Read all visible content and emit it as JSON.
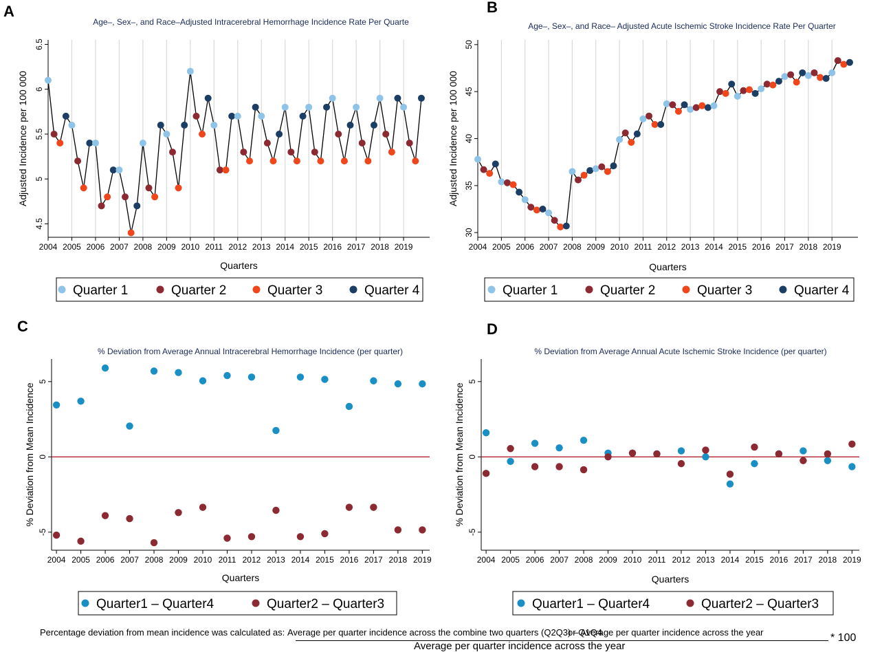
{
  "colors": {
    "q1": "#8fc4e8",
    "q2": "#8b2a32",
    "q3": "#f0461c",
    "q4": "#1c3e64",
    "q14": "#1a8fc4",
    "q23": "#8b2a32",
    "zero": "#b3222d",
    "grid": "#d9d9d9"
  },
  "footnote": {
    "prefix": "Percentage deviation from mean incidence was calculated as:",
    "numerator": "Average per quarter incidence across the combine two quarters (Q2Q3) – Average per quarter incidence across the year",
    "overlay_fragment": "or Q1Q4",
    "denominator": "Average per quarter incidence across the year",
    "multiplier": "* 100"
  },
  "chart_data": [
    {
      "id": "A",
      "letter": "A",
      "type": "line",
      "title": "Age–, Sex–, and Race–Adjusted Intracerebral Hemorrhage Incidence Rate Per Quarte",
      "xlabel": "Quarters",
      "ylabel": "Adjusted Incidence per 100 000",
      "xlim": [
        2004,
        2020.1
      ],
      "ylim": [
        4.35,
        6.55
      ],
      "yticks": [
        4.5,
        5,
        5.5,
        6,
        6.5
      ],
      "ytick_labels": [
        "4.5",
        "5",
        "5.5",
        "6",
        "6.5"
      ],
      "xticks": [
        2004,
        2005,
        2006,
        2007,
        2008,
        2009,
        2010,
        2011,
        2012,
        2013,
        2014,
        2015,
        2016,
        2017,
        2018,
        2019
      ],
      "xtick_labels": [
        "2004",
        "2005",
        "2006",
        "2007",
        "2008",
        "2009",
        "2010",
        "2011",
        "2012",
        "2013",
        "2014",
        "2015",
        "2016",
        "2017",
        "2018",
        "2019"
      ],
      "legend": [
        "Quarter 1",
        "Quarter 2",
        "Quarter 3",
        "Quarter 4"
      ],
      "values": [
        6.1,
        5.5,
        5.4,
        5.7,
        5.6,
        5.2,
        4.9,
        5.4,
        5.4,
        4.7,
        4.8,
        5.1,
        5.1,
        4.8,
        4.4,
        4.7,
        5.4,
        4.9,
        4.8,
        5.6,
        5.5,
        5.3,
        4.9,
        5.6,
        6.2,
        5.7,
        5.5,
        5.9,
        5.6,
        5.1,
        5.1,
        5.7,
        5.7,
        5.3,
        5.2,
        5.8,
        5.7,
        5.4,
        5.2,
        5.5,
        5.8,
        5.3,
        5.2,
        5.7,
        5.8,
        5.3,
        5.2,
        5.8,
        5.9,
        5.5,
        5.2,
        5.6,
        5.8,
        5.4,
        5.2,
        5.6,
        5.9,
        5.5,
        5.3,
        5.9,
        5.8,
        5.4,
        5.2,
        5.9
      ]
    },
    {
      "id": "B",
      "letter": "B",
      "type": "line",
      "title": "Age–, Sex–, and Race– Adjusted Acute Ischemic Stroke Incidence Rate Per Quarter",
      "xlabel": "Quarters",
      "ylabel": "Adjusted Incidence per 100 000",
      "xlim": [
        2004,
        2020.1
      ],
      "ylim": [
        29.5,
        50.5
      ],
      "yticks": [
        30,
        35,
        40,
        45,
        50
      ],
      "ytick_labels": [
        "30",
        "35",
        "40",
        "45",
        "50"
      ],
      "xticks": [
        2004,
        2005,
        2006,
        2007,
        2008,
        2009,
        2010,
        2011,
        2012,
        2013,
        2014,
        2015,
        2016,
        2017,
        2018,
        2019
      ],
      "xtick_labels": [
        "2004",
        "2005",
        "2006",
        "2007",
        "2008",
        "2009",
        "2010",
        "2011",
        "2012",
        "2013",
        "2014",
        "2015",
        "2016",
        "2017",
        "2018",
        "2019"
      ],
      "legend": [
        "Quarter 1",
        "Quarter 2",
        "Quarter 3",
        "Quarter 4"
      ],
      "values": [
        37.8,
        36.7,
        36.3,
        37.3,
        35.4,
        35.3,
        35.1,
        34.3,
        33.5,
        32.7,
        32.4,
        32.5,
        32.1,
        31.3,
        30.6,
        30.7,
        36.5,
        35.6,
        36.1,
        36.6,
        36.8,
        37.0,
        36.5,
        37.1,
        39.9,
        40.6,
        39.6,
        40.5,
        42.1,
        42.4,
        41.5,
        41.5,
        43.7,
        43.6,
        42.9,
        43.6,
        43.1,
        43.3,
        43.5,
        43.3,
        43.5,
        45.0,
        44.8,
        45.8,
        44.5,
        45.1,
        45.2,
        44.8,
        45.3,
        45.8,
        45.7,
        46.1,
        46.6,
        46.8,
        46.0,
        47.0,
        46.7,
        47.0,
        46.5,
        46.4,
        47.0,
        48.3,
        47.9,
        48.1
      ]
    },
    {
      "id": "C",
      "letter": "C",
      "type": "scatter",
      "title": "% Deviation from Average Annual Intracerebral Hemorrhage Incidence (per quarter)",
      "xlabel": "Quarters",
      "ylabel": "% Deviation from Mean Incidence",
      "xlim": [
        2003.8,
        2019.3
      ],
      "ylim": [
        -6.2,
        6.5
      ],
      "yticks": [
        -5,
        0,
        5
      ],
      "ytick_labels": [
        "-5",
        "0",
        "5"
      ],
      "xticks": [
        2004,
        2005,
        2006,
        2007,
        2008,
        2009,
        2010,
        2011,
        2012,
        2013,
        2014,
        2015,
        2016,
        2017,
        2018,
        2019
      ],
      "xtick_labels": [
        "2004",
        "2005",
        "2006",
        "2007",
        "2008",
        "2009",
        "2010",
        "2011",
        "2012",
        "2013",
        "2014",
        "2015",
        "2016",
        "2017",
        "2018",
        "2019"
      ],
      "legend": [
        "Quarter1 – Quarter4",
        "Quarter2 – Quarter3"
      ],
      "series": [
        {
          "name": "Quarter1 – Quarter4",
          "values": [
            3.45,
            3.7,
            5.9,
            2.05,
            5.7,
            5.6,
            5.05,
            5.4,
            5.3,
            1.75,
            5.3,
            5.15,
            3.35,
            5.05,
            4.85,
            4.85
          ]
        },
        {
          "name": "Quarter2 – Quarter3",
          "values": [
            -5.2,
            -5.6,
            -3.9,
            -4.1,
            -5.7,
            -3.7,
            -3.35,
            -5.4,
            -5.3,
            -3.55,
            -5.3,
            -5.1,
            -3.35,
            -3.35,
            -4.85,
            -4.85
          ]
        }
      ]
    },
    {
      "id": "D",
      "letter": "D",
      "type": "scatter",
      "title": "% Deviation from Average Annual Acute Ischemic Stroke Incidence (per quarter)",
      "xlabel": "Quarters",
      "ylabel": "% Deviation from Mean Incidence",
      "xlim": [
        2003.8,
        2019.3
      ],
      "ylim": [
        -6.2,
        6.5
      ],
      "yticks": [
        -5,
        0,
        5
      ],
      "ytick_labels": [
        "-5",
        "0",
        "5"
      ],
      "xticks": [
        2004,
        2005,
        2006,
        2007,
        2008,
        2009,
        2010,
        2011,
        2012,
        2013,
        2014,
        2015,
        2016,
        2017,
        2018,
        2019
      ],
      "xtick_labels": [
        "2004",
        "2005",
        "2006",
        "2007",
        "2008",
        "2009",
        "2010",
        "2011",
        "2012",
        "2013",
        "2014",
        "2015",
        "2016",
        "2017",
        "2018",
        "2019"
      ],
      "legend": [
        "Quarter1 – Quarter4",
        "Quarter2 – Quarter3"
      ],
      "series": [
        {
          "name": "Quarter1 – Quarter4",
          "values": [
            1.6,
            -0.3,
            0.9,
            0.6,
            1.1,
            0.25,
            0.25,
            0.2,
            0.4,
            0.0,
            -1.8,
            -0.45,
            0.2,
            0.4,
            -0.25,
            -0.65
          ]
        },
        {
          "name": "Quarter2 – Quarter3",
          "values": [
            -1.1,
            0.55,
            -0.65,
            -0.65,
            -0.85,
            0.0,
            0.25,
            0.2,
            -0.45,
            0.45,
            -1.15,
            0.65,
            0.2,
            -0.25,
            0.2,
            0.85
          ]
        }
      ]
    }
  ]
}
